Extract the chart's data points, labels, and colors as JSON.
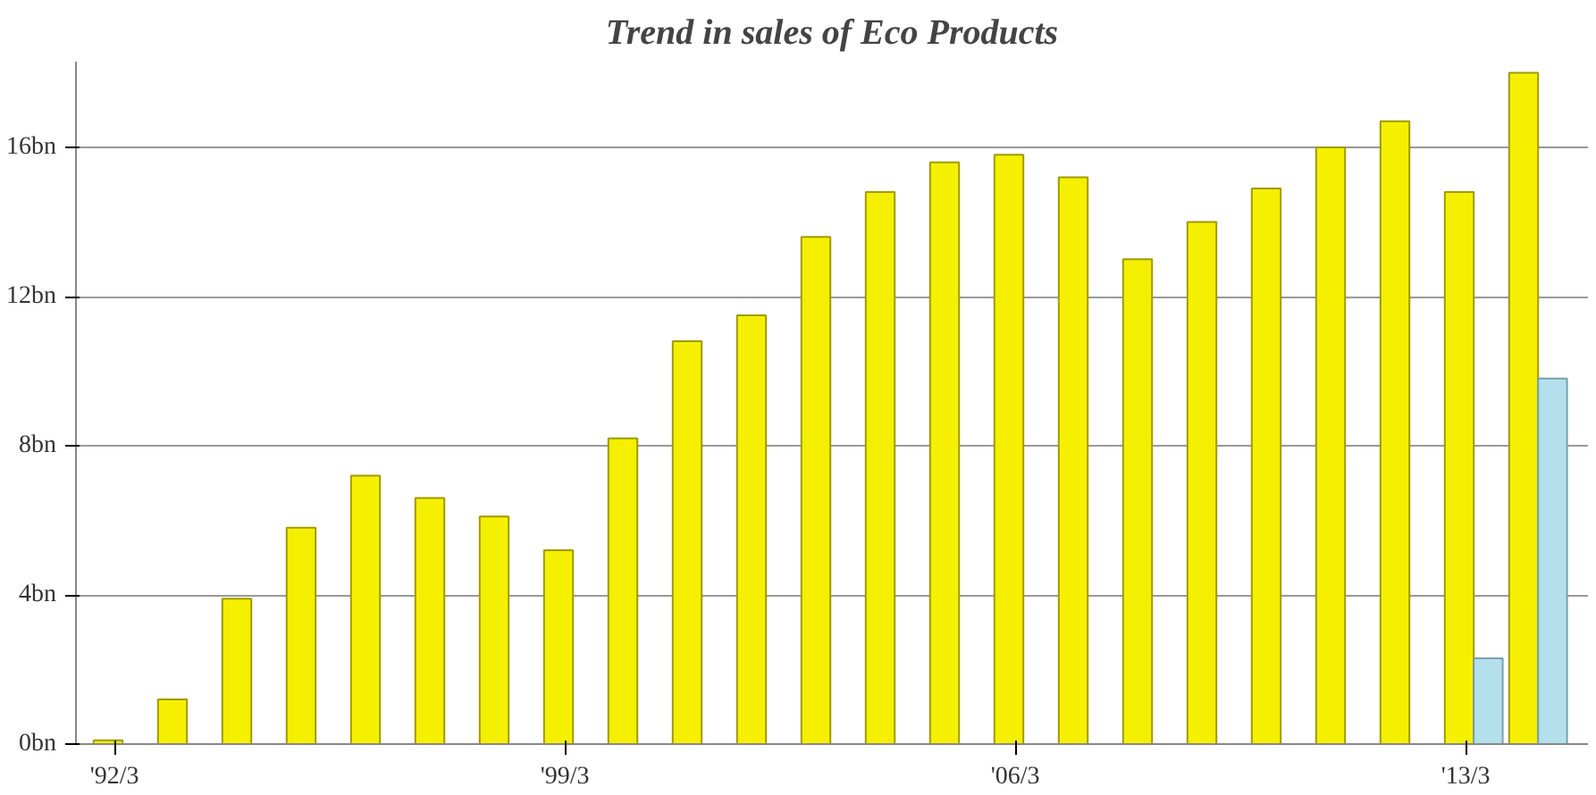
{
  "chart_data": {
    "type": "bar",
    "title": "Trend in sales of Eco Products",
    "categories": [
      "'92/3",
      null,
      null,
      null,
      null,
      null,
      null,
      "'99/3",
      null,
      null,
      null,
      null,
      null,
      null,
      "'06/3",
      null,
      null,
      null,
      null,
      null,
      null,
      "'13/3",
      null
    ],
    "series": [
      {
        "color": "#f5f000",
        "values": [
          0.1,
          1.2,
          3.9,
          5.8,
          7.2,
          6.6,
          6.1,
          5.2,
          8.2,
          10.8,
          11.5,
          13.6,
          14.8,
          15.6,
          15.8,
          15.2,
          13.0,
          14.0,
          14.9,
          16.0,
          16.7,
          14.8,
          18.0
        ]
      },
      {
        "color": "#b4e0ee",
        "values": [
          null,
          null,
          null,
          null,
          null,
          null,
          null,
          null,
          null,
          null,
          null,
          null,
          null,
          null,
          null,
          null,
          null,
          null,
          null,
          null,
          null,
          2.3,
          9.8
        ]
      }
    ],
    "ylim": [
      0,
      18.3
    ],
    "yticks": [
      {
        "value": 0,
        "label": "0bn"
      },
      {
        "value": 4,
        "label": "4bn"
      },
      {
        "value": 8,
        "label": "8bn"
      },
      {
        "value": 12,
        "label": "12bn"
      },
      {
        "value": 16,
        "label": "16bn"
      }
    ],
    "grid": "y"
  }
}
